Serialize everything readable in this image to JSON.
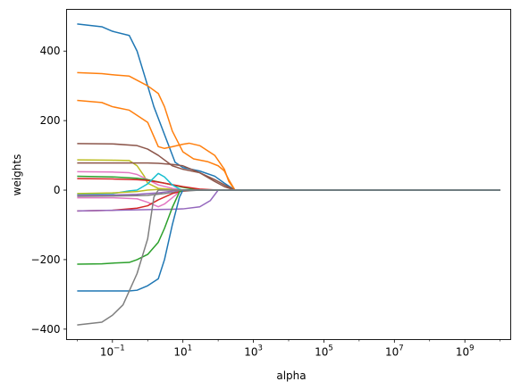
{
  "chart_data": {
    "type": "line",
    "title": "",
    "xlabel": "alpha",
    "ylabel": "weights",
    "xscale": "log",
    "x_tick_values": [
      0.1,
      10,
      1000,
      100000,
      10000000,
      1000000000
    ],
    "x_tick_labels": [
      {
        "base": "10",
        "exp": "−1"
      },
      {
        "base": "10",
        "exp": "1"
      },
      {
        "base": "10",
        "exp": "3"
      },
      {
        "base": "10",
        "exp": "5"
      },
      {
        "base": "10",
        "exp": "7"
      },
      {
        "base": "10",
        "exp": "9"
      }
    ],
    "y_ticks": [
      -400,
      -200,
      0,
      200,
      400
    ],
    "y_tick_labels": [
      "−400",
      "−200",
      "0",
      "200",
      "400"
    ],
    "xlim": [
      0.005,
      20000000000
    ],
    "ylim": [
      -430,
      520
    ],
    "grid": false,
    "series": [
      {
        "color": "#1f77b4",
        "points": [
          [
            0.01,
            478
          ],
          [
            0.05,
            470
          ],
          [
            0.1,
            457
          ],
          [
            0.3,
            445
          ],
          [
            0.5,
            400
          ],
          [
            1,
            300
          ],
          [
            1.5,
            240
          ],
          [
            3,
            160
          ],
          [
            6,
            80
          ],
          [
            10,
            65
          ],
          [
            30,
            55
          ],
          [
            80,
            40
          ],
          [
            150,
            20
          ],
          [
            300,
            0
          ],
          [
            10000000000,
            0
          ]
        ]
      },
      {
        "color": "#ff7f0e",
        "points": [
          [
            0.01,
            338
          ],
          [
            0.05,
            335
          ],
          [
            0.1,
            332
          ],
          [
            0.3,
            328
          ],
          [
            1,
            300
          ],
          [
            2,
            278
          ],
          [
            3,
            240
          ],
          [
            5,
            170
          ],
          [
            10,
            110
          ],
          [
            20,
            90
          ],
          [
            50,
            82
          ],
          [
            100,
            70
          ],
          [
            150,
            55
          ],
          [
            200,
            30
          ],
          [
            300,
            0
          ],
          [
            10000000000,
            0
          ]
        ]
      },
      {
        "color": "#ff7f0e",
        "points": [
          [
            0.01,
            258
          ],
          [
            0.05,
            252
          ],
          [
            0.1,
            240
          ],
          [
            0.3,
            230
          ],
          [
            1,
            195
          ],
          [
            2,
            125
          ],
          [
            3,
            120
          ],
          [
            5,
            125
          ],
          [
            10,
            132
          ],
          [
            15,
            135
          ],
          [
            30,
            128
          ],
          [
            80,
            100
          ],
          [
            150,
            60
          ],
          [
            200,
            25
          ],
          [
            300,
            0
          ],
          [
            10000000000,
            0
          ]
        ]
      },
      {
        "color": "#8c564b",
        "points": [
          [
            0.01,
            134
          ],
          [
            0.1,
            133
          ],
          [
            0.5,
            128
          ],
          [
            1,
            118
          ],
          [
            2,
            100
          ],
          [
            5,
            70
          ],
          [
            10,
            60
          ],
          [
            30,
            50
          ],
          [
            80,
            30
          ],
          [
            150,
            15
          ],
          [
            300,
            0
          ],
          [
            10000000000,
            0
          ]
        ]
      },
      {
        "color": "#bcbd22",
        "points": [
          [
            0.01,
            87
          ],
          [
            0.1,
            86
          ],
          [
            0.3,
            85
          ],
          [
            0.5,
            70
          ],
          [
            0.8,
            40
          ],
          [
            1,
            20
          ],
          [
            2,
            5
          ],
          [
            10,
            0
          ],
          [
            10000000000,
            0
          ]
        ]
      },
      {
        "color": "#8c564b",
        "points": [
          [
            0.01,
            78
          ],
          [
            0.1,
            78
          ],
          [
            0.5,
            78
          ],
          [
            1,
            78
          ],
          [
            2,
            77
          ],
          [
            5,
            74
          ],
          [
            10,
            70
          ],
          [
            30,
            50
          ],
          [
            80,
            25
          ],
          [
            150,
            10
          ],
          [
            300,
            0
          ],
          [
            10000000000,
            0
          ]
        ]
      },
      {
        "color": "#e377c2",
        "points": [
          [
            0.01,
            53
          ],
          [
            0.1,
            52
          ],
          [
            0.3,
            50
          ],
          [
            0.5,
            45
          ],
          [
            1,
            30
          ],
          [
            2,
            15
          ],
          [
            5,
            5
          ],
          [
            10,
            0
          ],
          [
            10000000000,
            0
          ]
        ]
      },
      {
        "color": "#2ca02c",
        "points": [
          [
            0.01,
            40
          ],
          [
            0.1,
            38
          ],
          [
            0.5,
            34
          ],
          [
            1,
            30
          ],
          [
            3,
            20
          ],
          [
            10,
            8
          ],
          [
            30,
            0
          ],
          [
            10000000000,
            0
          ]
        ]
      },
      {
        "color": "#d62728",
        "points": [
          [
            0.01,
            33
          ],
          [
            0.1,
            32
          ],
          [
            0.5,
            30
          ],
          [
            1,
            28
          ],
          [
            3,
            20
          ],
          [
            10,
            10
          ],
          [
            30,
            3
          ],
          [
            100,
            0
          ],
          [
            10000000000,
            0
          ]
        ]
      },
      {
        "color": "#17becf",
        "points": [
          [
            0.01,
            -12
          ],
          [
            0.1,
            -10
          ],
          [
            0.3,
            -2
          ],
          [
            0.5,
            0
          ],
          [
            1,
            18
          ],
          [
            2,
            48
          ],
          [
            3,
            38
          ],
          [
            5,
            15
          ],
          [
            8,
            3
          ],
          [
            10,
            0
          ],
          [
            10000000000,
            0
          ]
        ]
      },
      {
        "color": "#bcbd22",
        "points": [
          [
            0.01,
            -10
          ],
          [
            0.1,
            -8
          ],
          [
            0.5,
            -4
          ],
          [
            1,
            0
          ],
          [
            2,
            2
          ],
          [
            5,
            0
          ],
          [
            10000000000,
            0
          ]
        ]
      },
      {
        "color": "#9467bd",
        "points": [
          [
            0.01,
            -15
          ],
          [
            0.1,
            -14
          ],
          [
            0.5,
            -12
          ],
          [
            1,
            -10
          ],
          [
            2,
            -8
          ],
          [
            5,
            -3
          ],
          [
            10,
            0
          ],
          [
            10000000000,
            0
          ]
        ]
      },
      {
        "color": "#7f7f7f",
        "points": [
          [
            0.01,
            -18
          ],
          [
            0.1,
            -17
          ],
          [
            0.5,
            -16
          ],
          [
            1,
            -15
          ],
          [
            3,
            -10
          ],
          [
            10,
            -3
          ],
          [
            30,
            0
          ],
          [
            10000000000,
            0
          ]
        ]
      },
      {
        "color": "#e377c2",
        "points": [
          [
            0.01,
            -22
          ],
          [
            0.1,
            -22
          ],
          [
            0.5,
            -25
          ],
          [
            1,
            -35
          ],
          [
            2,
            -48
          ],
          [
            3,
            -40
          ],
          [
            5,
            -22
          ],
          [
            8,
            -5
          ],
          [
            10,
            0
          ],
          [
            10000000000,
            0
          ]
        ]
      },
      {
        "color": "#d62728",
        "points": [
          [
            0.01,
            -60
          ],
          [
            0.1,
            -58
          ],
          [
            0.5,
            -52
          ],
          [
            1,
            -45
          ],
          [
            2,
            -28
          ],
          [
            5,
            -10
          ],
          [
            10,
            -2
          ],
          [
            20,
            0
          ],
          [
            10000000000,
            0
          ]
        ]
      },
      {
        "color": "#9467bd",
        "points": [
          [
            0.01,
            -60
          ],
          [
            0.1,
            -58
          ],
          [
            1,
            -56
          ],
          [
            5,
            -55
          ],
          [
            10,
            -54
          ],
          [
            30,
            -48
          ],
          [
            60,
            -30
          ],
          [
            100,
            0
          ],
          [
            10000000000,
            0
          ]
        ]
      },
      {
        "color": "#2ca02c",
        "points": [
          [
            0.01,
            -213
          ],
          [
            0.05,
            -212
          ],
          [
            0.1,
            -210
          ],
          [
            0.3,
            -208
          ],
          [
            0.5,
            -200
          ],
          [
            1,
            -185
          ],
          [
            2,
            -150
          ],
          [
            3,
            -110
          ],
          [
            5,
            -50
          ],
          [
            8,
            -5
          ],
          [
            10,
            0
          ],
          [
            10000000000,
            0
          ]
        ]
      },
      {
        "color": "#1f77b4",
        "points": [
          [
            0.01,
            -290
          ],
          [
            0.1,
            -290
          ],
          [
            0.3,
            -290
          ],
          [
            0.5,
            -288
          ],
          [
            1,
            -275
          ],
          [
            2,
            -255
          ],
          [
            3,
            -200
          ],
          [
            5,
            -100
          ],
          [
            8,
            -20
          ],
          [
            10,
            0
          ],
          [
            10000000000,
            0
          ]
        ]
      },
      {
        "color": "#7f7f7f",
        "points": [
          [
            0.01,
            -388
          ],
          [
            0.05,
            -380
          ],
          [
            0.1,
            -360
          ],
          [
            0.2,
            -330
          ],
          [
            0.5,
            -240
          ],
          [
            1,
            -140
          ],
          [
            1.5,
            -20
          ],
          [
            2,
            0
          ],
          [
            10000000000,
            0
          ]
        ]
      }
    ]
  }
}
